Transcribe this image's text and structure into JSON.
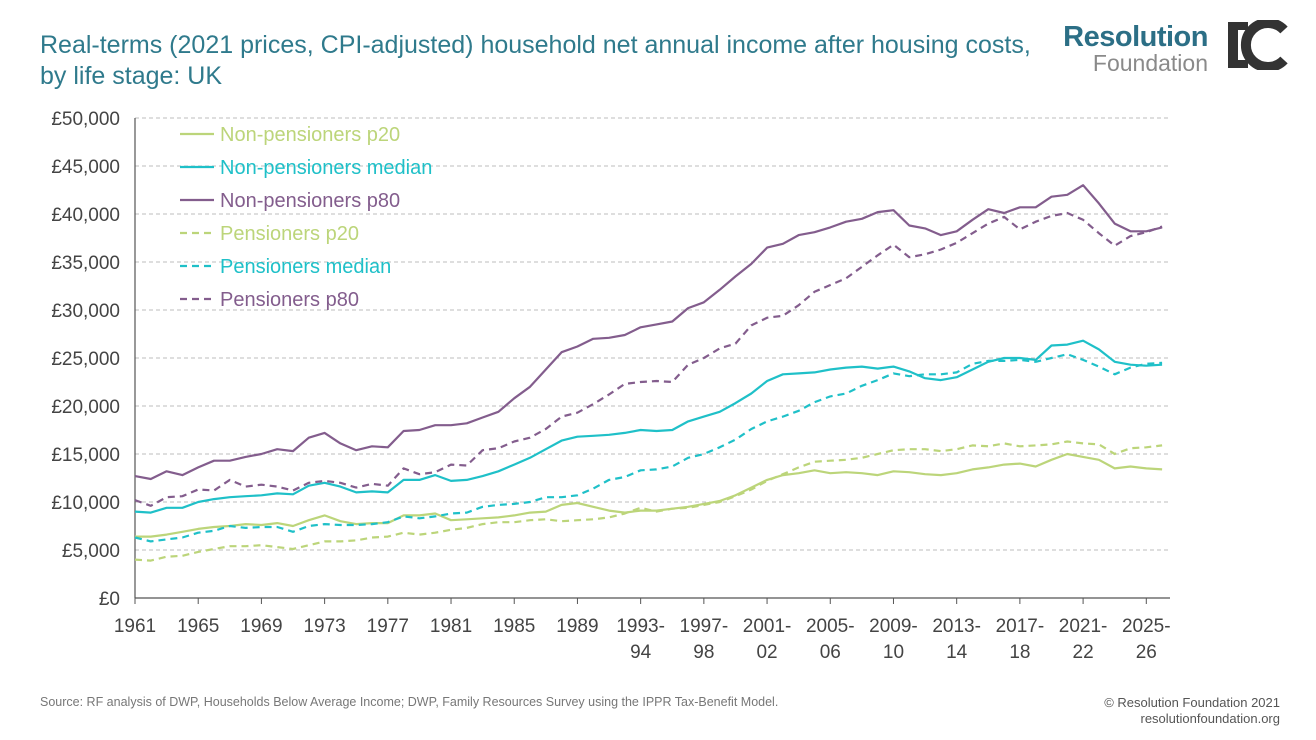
{
  "title": "Real-terms (2021 prices, CPI-adjusted) household net annual income after housing costs, by life stage: UK",
  "logo": {
    "top": "Resolution",
    "bottom": "Foundation",
    "mark_icon": "ic-monogram-icon"
  },
  "source": "Source: RF analysis of DWP, Households Below Average Income; DWP, Family Resources Survey using the IPPR Tax-Benefit Model.",
  "copyright": {
    "line1": "© Resolution Foundation 2021",
    "line2": "resolutionfoundation.org"
  },
  "colors": {
    "green": "#bcd57a",
    "teal": "#1fc0c8",
    "purple": "#835d8d",
    "title": "#2f7a8c",
    "grid": "#bdbdbd"
  },
  "chart_data": {
    "type": "line",
    "title": "",
    "xlabel": "",
    "ylabel": "",
    "xlim": [
      1961,
      2026.5
    ],
    "ylim": [
      0,
      50000
    ],
    "grid": true,
    "legend_position": "top-left",
    "yticks": [
      {
        "value": 0,
        "label": "£0"
      },
      {
        "value": 5000,
        "label": "£5,000"
      },
      {
        "value": 10000,
        "label": "£10,000"
      },
      {
        "value": 15000,
        "label": "£15,000"
      },
      {
        "value": 20000,
        "label": "£20,000"
      },
      {
        "value": 25000,
        "label": "£25,000"
      },
      {
        "value": 30000,
        "label": "£30,000"
      },
      {
        "value": 35000,
        "label": "£35,000"
      },
      {
        "value": 40000,
        "label": "£40,000"
      },
      {
        "value": 45000,
        "label": "£45,000"
      },
      {
        "value": 50000,
        "label": "£50,000"
      }
    ],
    "xticks": [
      {
        "value": 1961,
        "line1": "1961",
        "line2": ""
      },
      {
        "value": 1965,
        "line1": "1965",
        "line2": ""
      },
      {
        "value": 1969,
        "line1": "1969",
        "line2": ""
      },
      {
        "value": 1973,
        "line1": "1973",
        "line2": ""
      },
      {
        "value": 1977,
        "line1": "1977",
        "line2": ""
      },
      {
        "value": 1981,
        "line1": "1981",
        "line2": ""
      },
      {
        "value": 1985,
        "line1": "1985",
        "line2": ""
      },
      {
        "value": 1989,
        "line1": "1989",
        "line2": ""
      },
      {
        "value": 1993,
        "line1": "1993-",
        "line2": "94"
      },
      {
        "value": 1997,
        "line1": "1997-",
        "line2": "98"
      },
      {
        "value": 2001,
        "line1": "2001-",
        "line2": "02"
      },
      {
        "value": 2005,
        "line1": "2005-",
        "line2": "06"
      },
      {
        "value": 2009,
        "line1": "2009-",
        "line2": "10"
      },
      {
        "value": 2013,
        "line1": "2013-",
        "line2": "14"
      },
      {
        "value": 2017,
        "line1": "2017-",
        "line2": "18"
      },
      {
        "value": 2021,
        "line1": "2021-",
        "line2": "22"
      },
      {
        "value": 2025,
        "line1": "2025-",
        "line2": "26"
      }
    ],
    "x": [
      1961,
      1962,
      1963,
      1964,
      1965,
      1966,
      1967,
      1968,
      1969,
      1970,
      1971,
      1972,
      1973,
      1974,
      1975,
      1976,
      1977,
      1978,
      1979,
      1980,
      1981,
      1982,
      1983,
      1984,
      1985,
      1986,
      1987,
      1988,
      1989,
      1990,
      1991,
      1992,
      1993,
      1994,
      1995,
      1996,
      1997,
      1998,
      1999,
      2000,
      2001,
      2002,
      2003,
      2004,
      2005,
      2006,
      2007,
      2008,
      2009,
      2010,
      2011,
      2012,
      2013,
      2014,
      2015,
      2016,
      2017,
      2018,
      2019,
      2020,
      2021,
      2022,
      2023,
      2024,
      2025,
      2026
    ],
    "series": [
      {
        "name": "Non-pensioners p20",
        "color": "#bcd57a",
        "dashed": false,
        "values": [
          6400,
          6400,
          6600,
          6900,
          7200,
          7400,
          7500,
          7700,
          7600,
          7800,
          7500,
          8100,
          8600,
          8000,
          7700,
          7800,
          7800,
          8600,
          8600,
          8800,
          8100,
          8200,
          8300,
          8400,
          8600,
          8900,
          9000,
          9700,
          9900,
          9500,
          9100,
          8900,
          9100,
          9100,
          9300,
          9500,
          9800,
          10100,
          10700,
          11500,
          12300,
          12800,
          13000,
          13300,
          13000,
          13100,
          13000,
          12800,
          13200,
          13100,
          12900,
          12800,
          13000,
          13400,
          13600,
          13900,
          14000,
          13700,
          14400,
          15000,
          14700,
          14400,
          13500,
          13700,
          13500,
          13400
        ]
      },
      {
        "name": "Non-pensioners median",
        "color": "#1fc0c8",
        "dashed": false,
        "values": [
          9000,
          8900,
          9400,
          9400,
          10000,
          10300,
          10500,
          10600,
          10700,
          10900,
          10800,
          11700,
          12000,
          11600,
          11000,
          11100,
          11000,
          12300,
          12300,
          12800,
          12200,
          12300,
          12700,
          13200,
          13900,
          14600,
          15500,
          16400,
          16800,
          16900,
          17000,
          17200,
          17500,
          17400,
          17500,
          18400,
          18900,
          19400,
          20300,
          21300,
          22600,
          23300,
          23400,
          23500,
          23800,
          24000,
          24100,
          23900,
          24100,
          23600,
          22900,
          22700,
          23000,
          23800,
          24600,
          25000,
          25000,
          24800,
          26300,
          26400,
          26800,
          25900,
          24600,
          24300,
          24200,
          24300
        ]
      },
      {
        "name": "Non-pensioners p80",
        "color": "#835d8d",
        "dashed": false,
        "values": [
          12700,
          12400,
          13200,
          12800,
          13600,
          14300,
          14300,
          14700,
          15000,
          15500,
          15300,
          16700,
          17200,
          16100,
          15400,
          15800,
          15700,
          17400,
          17500,
          18000,
          18000,
          18200,
          18800,
          19400,
          20800,
          22000,
          23800,
          25600,
          26200,
          27000,
          27100,
          27400,
          28200,
          28500,
          28800,
          30200,
          30800,
          32100,
          33500,
          34800,
          36500,
          36900,
          37800,
          38100,
          38600,
          39200,
          39500,
          40200,
          40400,
          38800,
          38500,
          37800,
          38200,
          39400,
          40500,
          40100,
          40700,
          40700,
          41800,
          42000,
          43000,
          41100,
          39000,
          38200,
          38200,
          38600
        ]
      },
      {
        "name": "Pensioners p20",
        "color": "#bcd57a",
        "dashed": true,
        "values": [
          4000,
          3900,
          4300,
          4400,
          4800,
          5100,
          5400,
          5400,
          5500,
          5300,
          5100,
          5500,
          5900,
          5900,
          6000,
          6300,
          6400,
          6800,
          6600,
          6800,
          7100,
          7300,
          7700,
          7900,
          7900,
          8100,
          8200,
          8000,
          8100,
          8200,
          8400,
          8800,
          9400,
          9000,
          9300,
          9400,
          9700,
          10000,
          10600,
          11300,
          12200,
          12900,
          13600,
          14200,
          14300,
          14400,
          14600,
          15000,
          15400,
          15500,
          15500,
          15300,
          15500,
          15900,
          15800,
          16100,
          15800,
          15900,
          16000,
          16300,
          16100,
          16000,
          15000,
          15600,
          15700,
          15900
        ]
      },
      {
        "name": "Pensioners median",
        "color": "#1fc0c8",
        "dashed": true,
        "values": [
          6300,
          5900,
          6100,
          6300,
          6800,
          7000,
          7500,
          7300,
          7400,
          7400,
          6900,
          7500,
          7700,
          7600,
          7600,
          7700,
          7900,
          8500,
          8300,
          8500,
          8800,
          8900,
          9500,
          9700,
          9800,
          10000,
          10500,
          10500,
          10700,
          11400,
          12300,
          12600,
          13300,
          13400,
          13700,
          14600,
          15000,
          15700,
          16500,
          17600,
          18400,
          18900,
          19500,
          20400,
          21000,
          21300,
          22100,
          22700,
          23400,
          23100,
          23300,
          23300,
          23500,
          24400,
          24700,
          24700,
          24800,
          24600,
          25000,
          25400,
          24800,
          24100,
          23300,
          24000,
          24400,
          24500
        ]
      },
      {
        "name": "Pensioners p80",
        "color": "#835d8d",
        "dashed": true,
        "values": [
          10200,
          9600,
          10500,
          10600,
          11300,
          11200,
          12300,
          11600,
          11800,
          11600,
          11200,
          12000,
          12200,
          12000,
          11500,
          11900,
          11700,
          13500,
          12900,
          13100,
          13900,
          13800,
          15400,
          15600,
          16300,
          16700,
          17600,
          18900,
          19300,
          20200,
          21200,
          22300,
          22500,
          22600,
          22500,
          24300,
          25000,
          26000,
          26500,
          28400,
          29200,
          29400,
          30500,
          31900,
          32600,
          33300,
          34500,
          35700,
          36800,
          35500,
          35800,
          36300,
          37000,
          38000,
          39000,
          39700,
          38400,
          39200,
          39800,
          40100,
          39400,
          38000,
          36700,
          37700,
          38100,
          38700
        ]
      }
    ]
  }
}
